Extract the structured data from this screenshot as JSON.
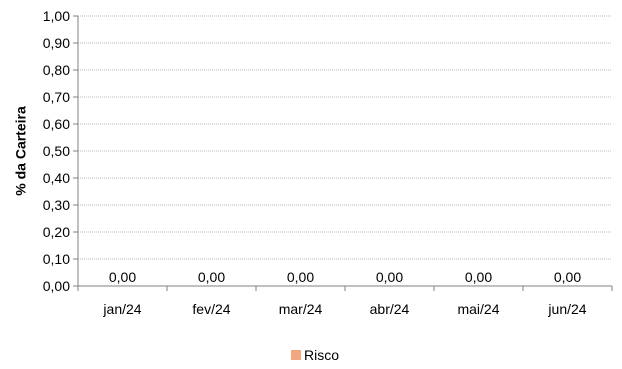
{
  "chart_data": {
    "type": "bar",
    "title": "",
    "xlabel": "",
    "ylabel": "% da Carteira",
    "categories": [
      "jan/24",
      "fev/24",
      "mar/24",
      "abr/24",
      "mai/24",
      "jun/24"
    ],
    "y_ticks": [
      "0,00",
      "0,10",
      "0,20",
      "0,30",
      "0,40",
      "0,50",
      "0,60",
      "0,70",
      "0,80",
      "0,90",
      "1,00"
    ],
    "ylim": [
      0,
      1
    ],
    "grid": true,
    "legend_position": "bottom",
    "series": [
      {
        "name": "Risco",
        "color": "#f4a582",
        "values": [
          0,
          0,
          0,
          0,
          0,
          0
        ],
        "value_labels": [
          "0,00",
          "0,00",
          "0,00",
          "0,00",
          "0,00",
          "0,00"
        ]
      }
    ]
  }
}
